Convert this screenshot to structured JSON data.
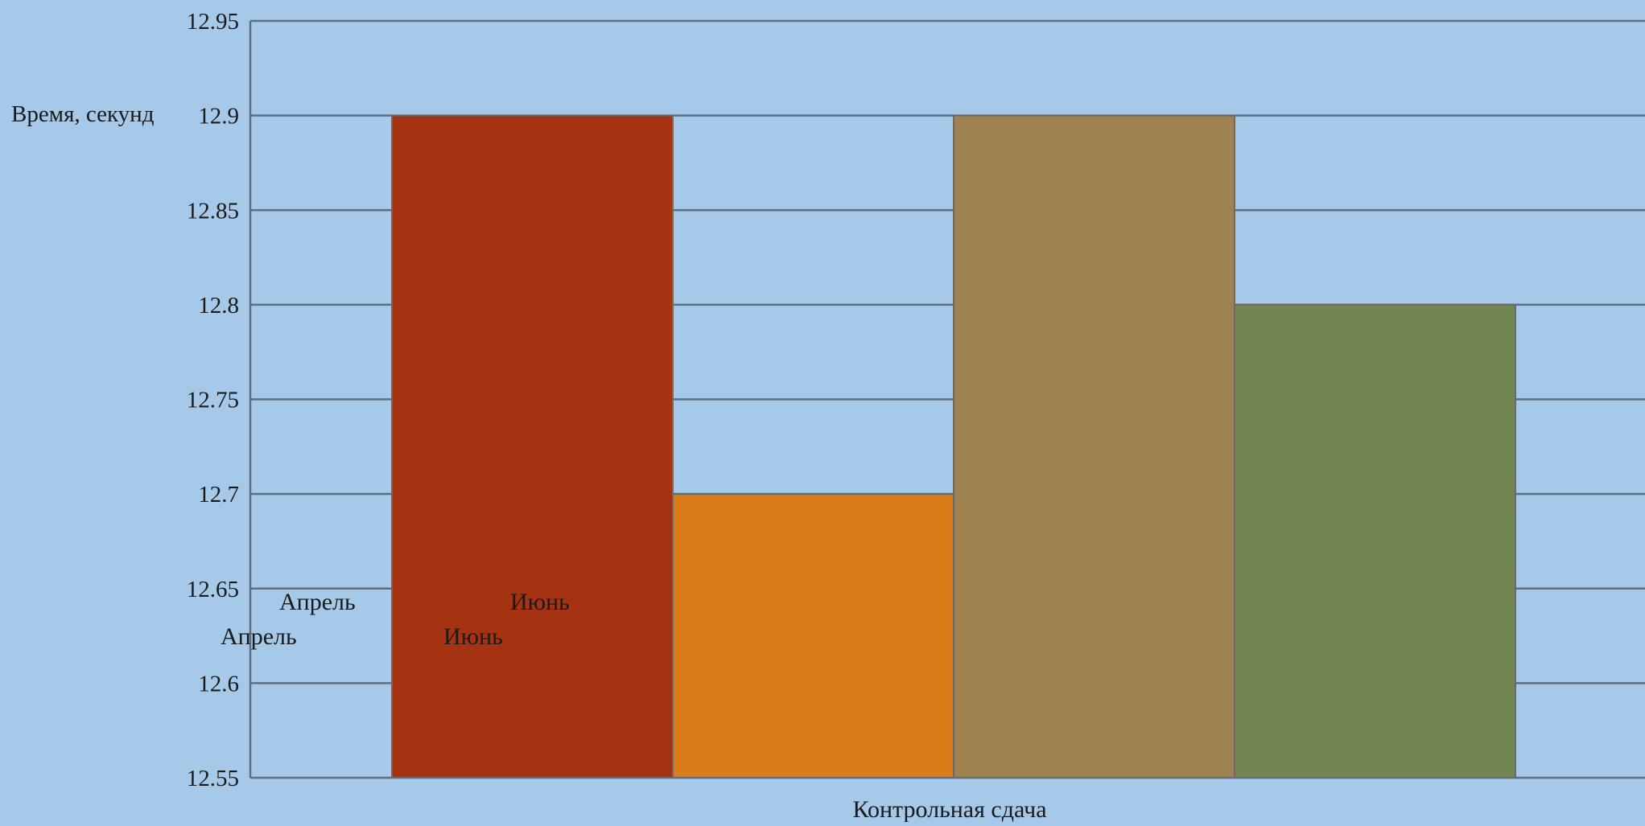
{
  "chart_data": {
    "type": "bar",
    "ylabel": "Время, секунд",
    "xlabel": "Контрольная сдача",
    "ylim": [
      12.55,
      12.95
    ],
    "yticks": [
      "12.55",
      "12.6",
      "12.65",
      "12.7",
      "12.75",
      "12.8",
      "12.85",
      "12.9",
      "12.95"
    ],
    "grid": true,
    "series": [
      {
        "value": 12.9,
        "color": "#a53211"
      },
      {
        "value": 12.7,
        "color": "#db7b19"
      },
      {
        "value": 12.9,
        "color": "#9e8250"
      },
      {
        "value": 12.8,
        "color": "#718650"
      }
    ],
    "annotations": [
      {
        "text": "Апрель",
        "x_category": 0
      },
      {
        "text": "Июнь",
        "x_category": 1
      },
      {
        "text": "Апрель",
        "x_category": 0
      },
      {
        "text": "Июнь",
        "x_category": 1
      }
    ]
  }
}
